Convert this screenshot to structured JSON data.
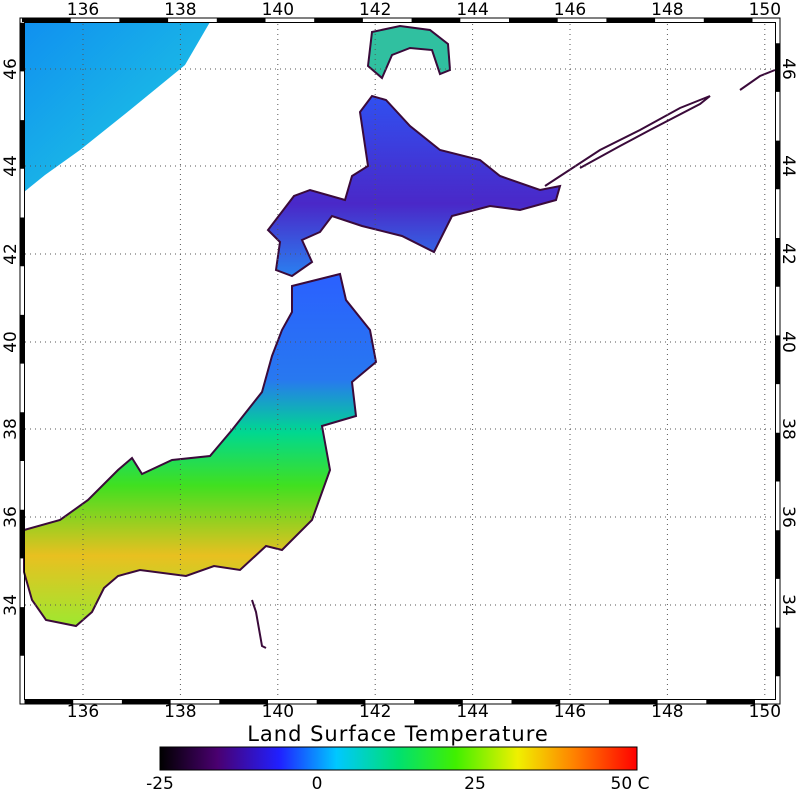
{
  "map": {
    "title": "Land Surface Temperature",
    "lon_ticks": [
      "136",
      "138",
      "140",
      "142",
      "144",
      "146",
      "148",
      "150"
    ],
    "lat_ticks": [
      "46",
      "44",
      "42",
      "40",
      "38",
      "36",
      "34"
    ],
    "colorbar": {
      "labels": [
        "-25",
        "0",
        "25",
        "50 C"
      ]
    }
  }
}
